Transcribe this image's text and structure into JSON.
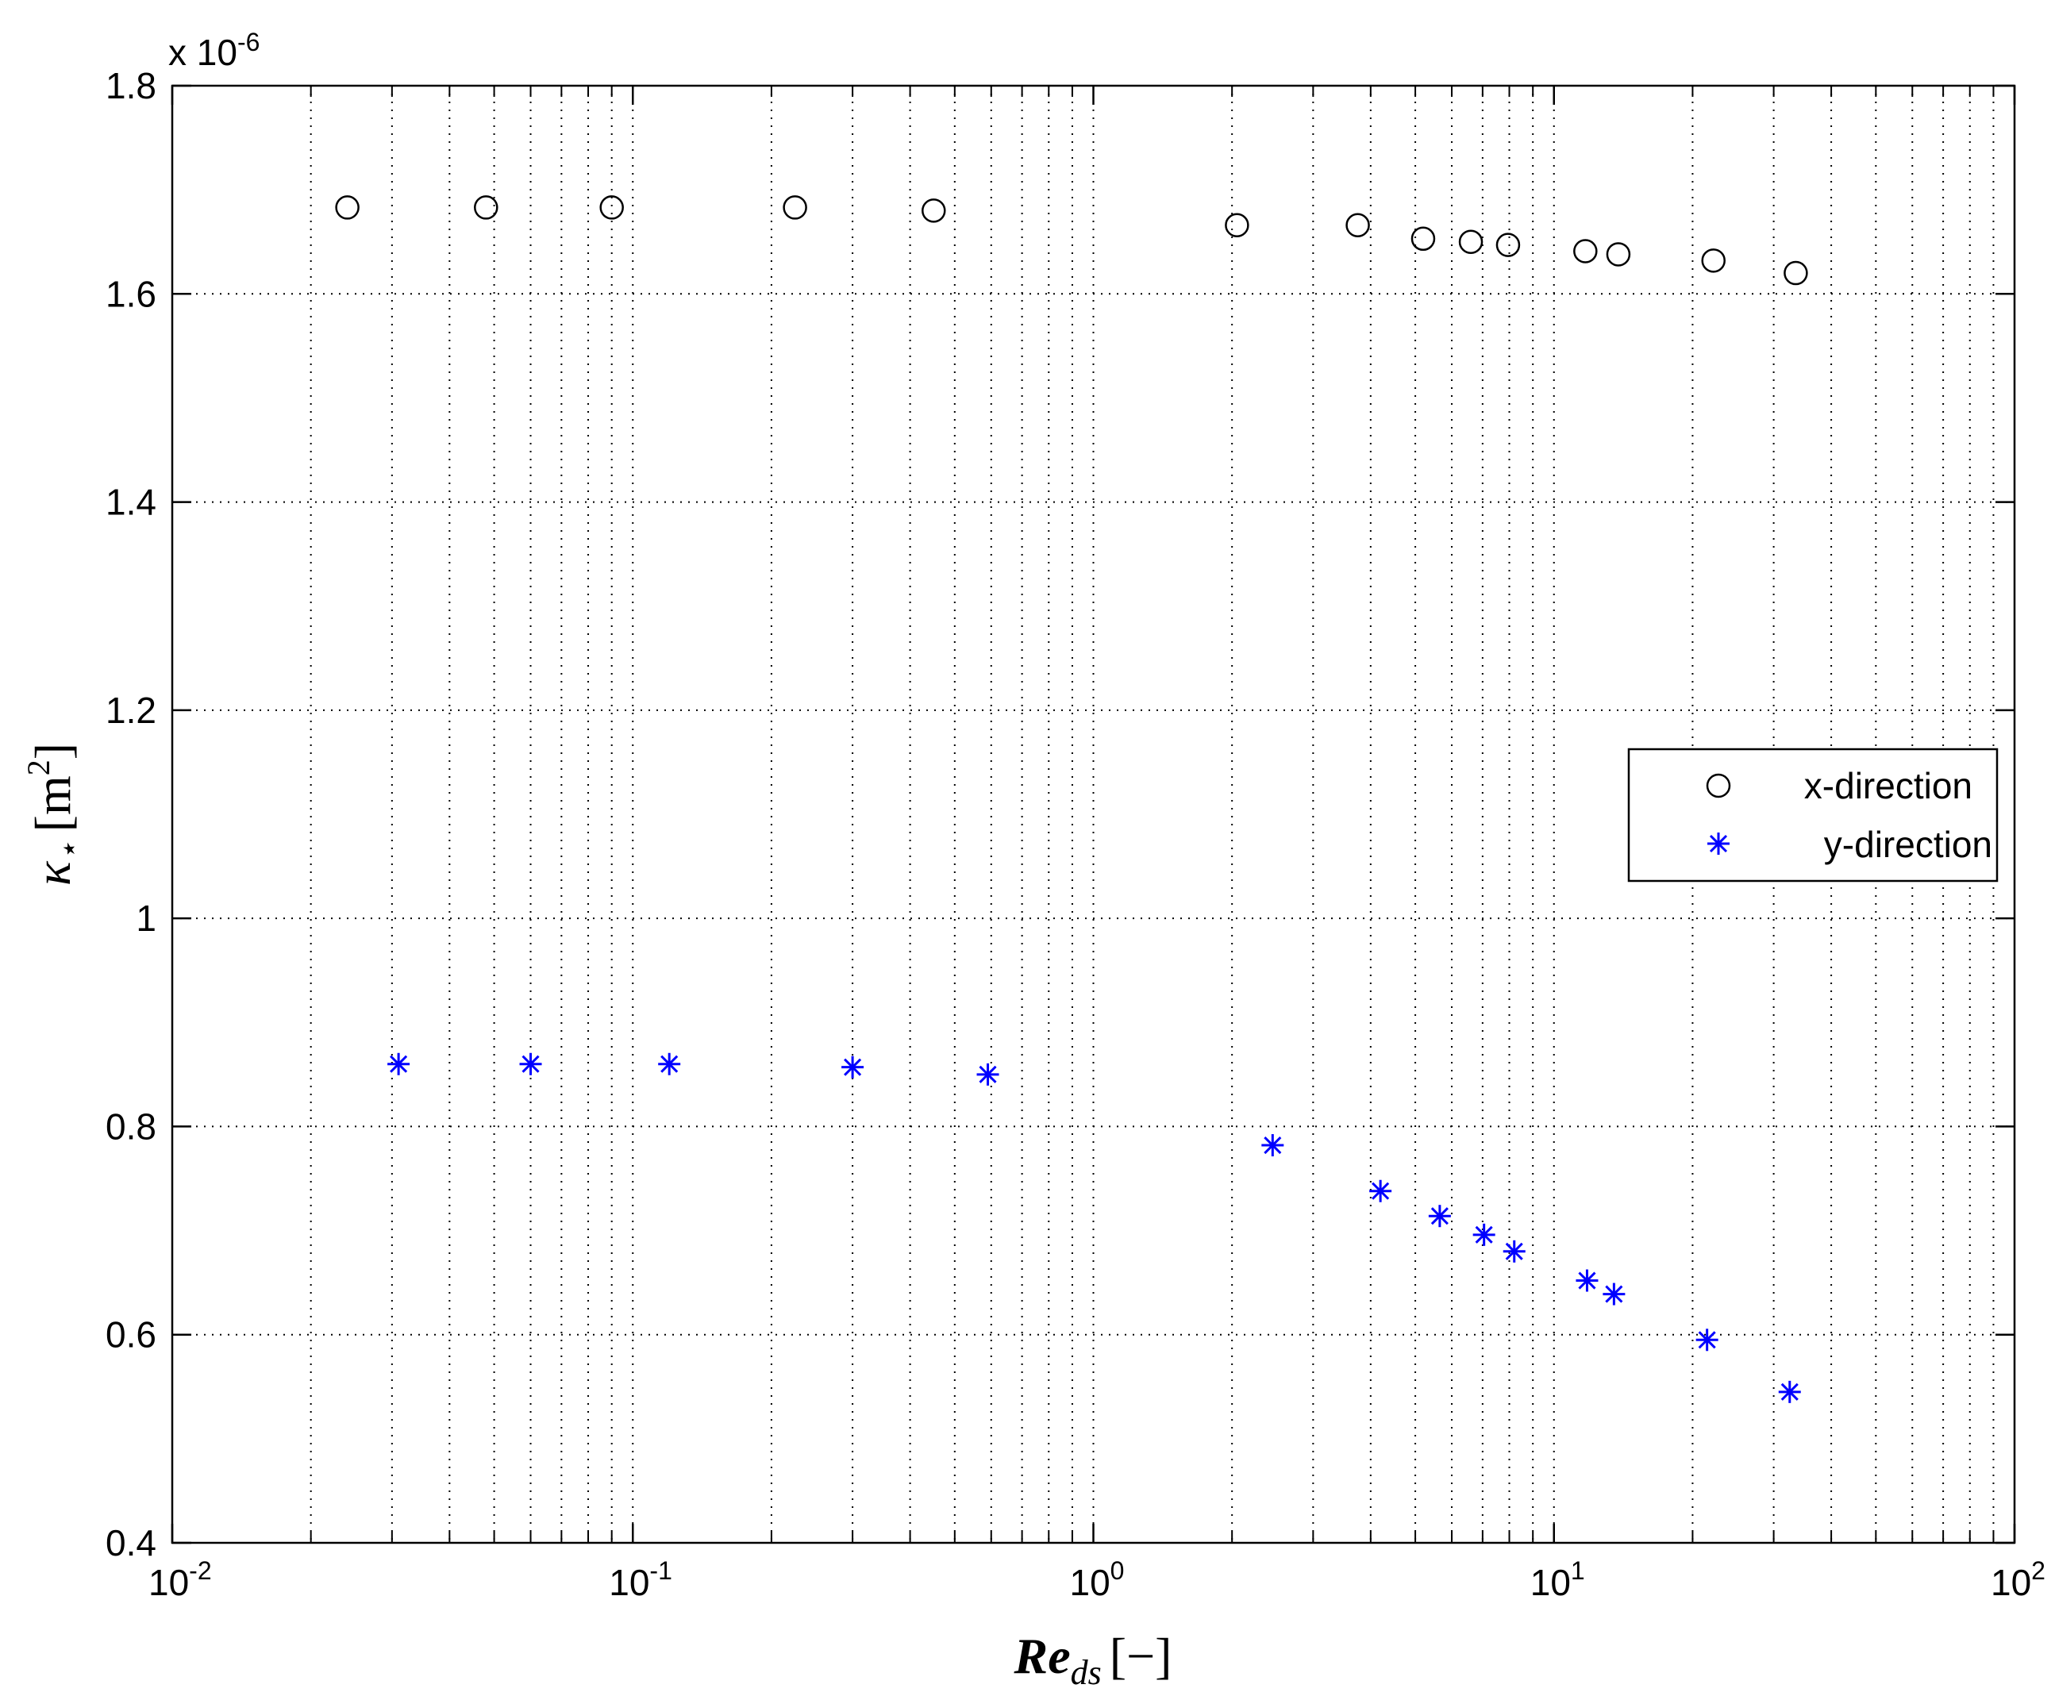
{
  "chart_data": {
    "type": "scatter",
    "xscale": "log",
    "xlim": [
      0.01,
      100
    ],
    "ylim": [
      0.4,
      1.8
    ],
    "y_multiplier_label": "x 10",
    "y_multiplier_exponent": "-6",
    "x_ticks": [
      {
        "value": 0.01,
        "base": "10",
        "exp": "-2"
      },
      {
        "value": 0.1,
        "base": "10",
        "exp": "-1"
      },
      {
        "value": 1,
        "base": "10",
        "exp": "0"
      },
      {
        "value": 10,
        "base": "10",
        "exp": "1"
      },
      {
        "value": 100,
        "base": "10",
        "exp": "2"
      }
    ],
    "y_ticks": [
      "0.4",
      "0.6",
      "0.8",
      "1",
      "1.2",
      "1.4",
      "1.6",
      "1.8"
    ],
    "xlabel": {
      "main": "Re",
      "sub": "ds",
      "unit": "[−]"
    },
    "ylabel": {
      "main": "κ",
      "sub": "⋆",
      "unit": "[m",
      "unit_exp": "2",
      "unit_close": "]"
    },
    "grid": true,
    "legend_position": "center-right",
    "series": [
      {
        "name": "x-direction",
        "marker": "circle",
        "color": "#000000",
        "x": [
          0.024,
          0.048,
          0.09,
          0.225,
          0.45,
          2.05,
          3.75,
          5.2,
          6.6,
          7.95,
          11.7,
          13.8,
          22.2,
          33.5
        ],
        "y": [
          1.683,
          1.683,
          1.683,
          1.683,
          1.68,
          1.666,
          1.666,
          1.653,
          1.65,
          1.647,
          1.641,
          1.638,
          1.632,
          1.62
        ]
      },
      {
        "name": "y-direction",
        "marker": "asterisk",
        "color": "#0000ff",
        "x": [
          0.031,
          0.06,
          0.12,
          0.3,
          0.59,
          2.45,
          4.2,
          5.65,
          7.05,
          8.2,
          11.8,
          13.5,
          21.5,
          32.5
        ],
        "y": [
          0.86,
          0.86,
          0.86,
          0.857,
          0.85,
          0.782,
          0.738,
          0.714,
          0.696,
          0.68,
          0.652,
          0.639,
          0.595,
          0.545
        ]
      }
    ]
  }
}
